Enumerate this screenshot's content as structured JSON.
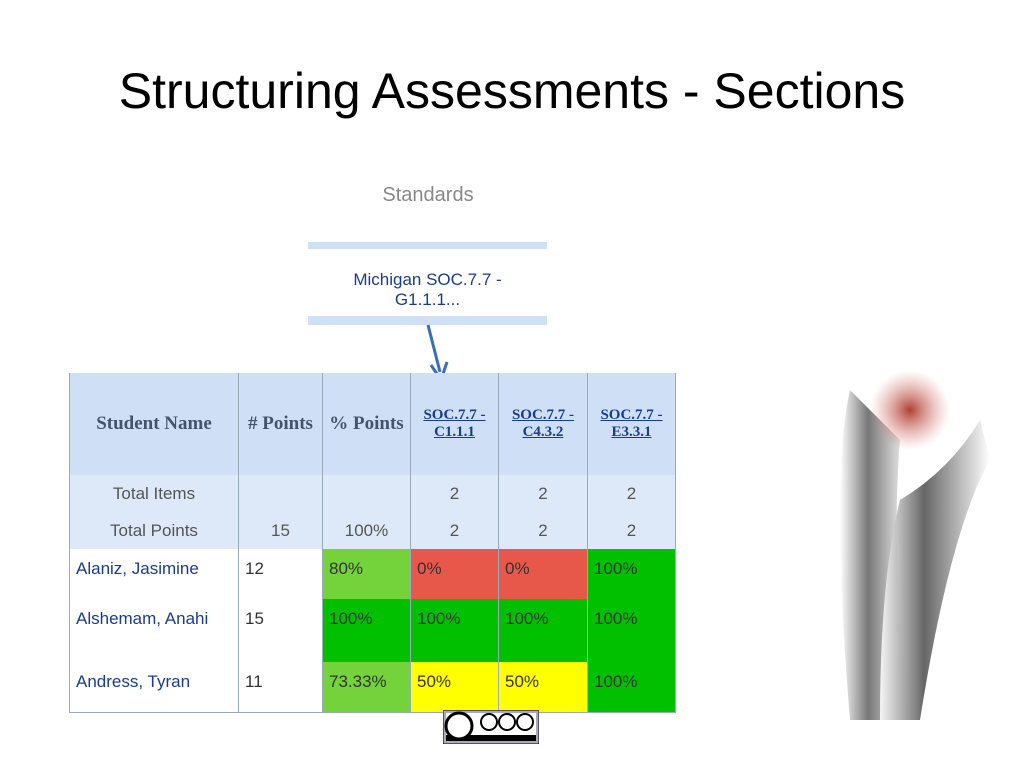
{
  "title": "Structuring Assessments - Sections",
  "standards_label": "Standards",
  "standards_box": "Michigan SOC.7.7 - G1.1.1...",
  "table": {
    "headers": [
      "Student Name",
      "# Points",
      "% Points",
      "SOC.7.7 - C1.1.1",
      "SOC.7.7 - C4.3.2",
      "SOC.7.7 - E3.3.1"
    ],
    "rows": [
      [
        "Total Items",
        null,
        null,
        "2",
        "2",
        "2"
      ],
      [
        "Total Points",
        "15",
        "100%",
        "2",
        "2",
        "2"
      ],
      [
        "Alaniz, Jasimine",
        "12",
        "80%",
        "0%",
        "0%",
        "100%"
      ],
      [
        "Alshemam, Anahi",
        "15",
        "100%",
        "100%",
        "100%",
        "100%"
      ],
      [
        "Andress, Tyran",
        "11",
        "73.33%",
        "50%",
        "50%",
        "100%"
      ]
    ]
  }
}
